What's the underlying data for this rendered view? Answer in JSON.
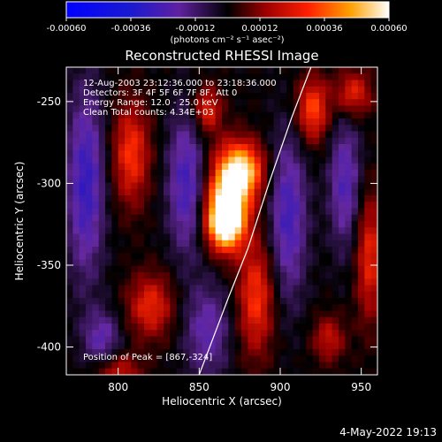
{
  "colorbar": {
    "ticks": [
      "-0.00060",
      "-0.00036",
      "-0.00012",
      "0.00012",
      "0.00036",
      "0.00060"
    ],
    "unit_label": "(photons cm⁻² s⁻¹ asec⁻²)"
  },
  "footer": {
    "date_stamp": "4-May-2022 19:13"
  },
  "chart_data": {
    "type": "heatmap",
    "title": "Reconstructed RHESSI Image",
    "xlabel": "Heliocentric X (arcsec)",
    "ylabel": "Heliocentric Y (arcsec)",
    "xlim": [
      768,
      960
    ],
    "ylim": [
      -417,
      -229
    ],
    "x_ticks": [
      800,
      850,
      900,
      950
    ],
    "y_ticks": [
      -250,
      -300,
      -350,
      -400
    ],
    "colorbar_range": [
      -0.0006,
      0.0006
    ],
    "info_lines": [
      "12-Aug-2003 23:12:36.000 to 23:18:36.000",
      "Detectors: 3F 4F 5F 6F 7F 8F, Att 0",
      "Energy Range: 12.0 - 25.0 keV",
      "Clean    Total counts: 4.34E+03"
    ],
    "peak_label": "Position of Peak = [867,-324]",
    "peak_position": [
      867,
      -324
    ],
    "limb_curve": [
      [
        850,
        -417
      ],
      [
        868,
        -370
      ],
      [
        880,
        -340
      ],
      [
        893,
        -300
      ],
      [
        907,
        -260
      ],
      [
        919,
        -229
      ]
    ],
    "sources": [
      {
        "x": 866,
        "y": -324,
        "amp": 1.0,
        "sx": 8,
        "sy": 12
      },
      {
        "x": 878,
        "y": -292,
        "amp": 0.7,
        "sx": 9,
        "sy": 12
      },
      {
        "x": 868,
        "y": -305,
        "amp": 0.75,
        "sx": 9,
        "sy": 18
      },
      {
        "x": 808,
        "y": -282,
        "amp": 0.5,
        "sx": 8,
        "sy": 22
      },
      {
        "x": 855,
        "y": -255,
        "amp": 0.45,
        "sx": 6,
        "sy": 10
      },
      {
        "x": 920,
        "y": -255,
        "amp": 0.55,
        "sx": 7,
        "sy": 14
      },
      {
        "x": 945,
        "y": -245,
        "amp": 0.45,
        "sx": 8,
        "sy": 10
      },
      {
        "x": 885,
        "y": -370,
        "amp": 0.5,
        "sx": 8,
        "sy": 25
      },
      {
        "x": 820,
        "y": -375,
        "amp": 0.45,
        "sx": 10,
        "sy": 14
      },
      {
        "x": 955,
        "y": -345,
        "amp": 0.45,
        "sx": 6,
        "sy": 28
      },
      {
        "x": 930,
        "y": -395,
        "amp": 0.35,
        "sx": 7,
        "sy": 10
      },
      {
        "x": 800,
        "y": -415,
        "amp": 0.35,
        "sx": 10,
        "sy": 8
      },
      {
        "x": 842,
        "y": -300,
        "amp": -0.45,
        "sx": 8,
        "sy": 30
      },
      {
        "x": 780,
        "y": -300,
        "amp": -0.5,
        "sx": 8,
        "sy": 40
      },
      {
        "x": 905,
        "y": -320,
        "amp": -0.45,
        "sx": 8,
        "sy": 35
      },
      {
        "x": 940,
        "y": -300,
        "amp": -0.4,
        "sx": 7,
        "sy": 28
      },
      {
        "x": 855,
        "y": -390,
        "amp": -0.35,
        "sx": 10,
        "sy": 20
      },
      {
        "x": 790,
        "y": -395,
        "amp": -0.35,
        "sx": 8,
        "sy": 12
      }
    ]
  }
}
